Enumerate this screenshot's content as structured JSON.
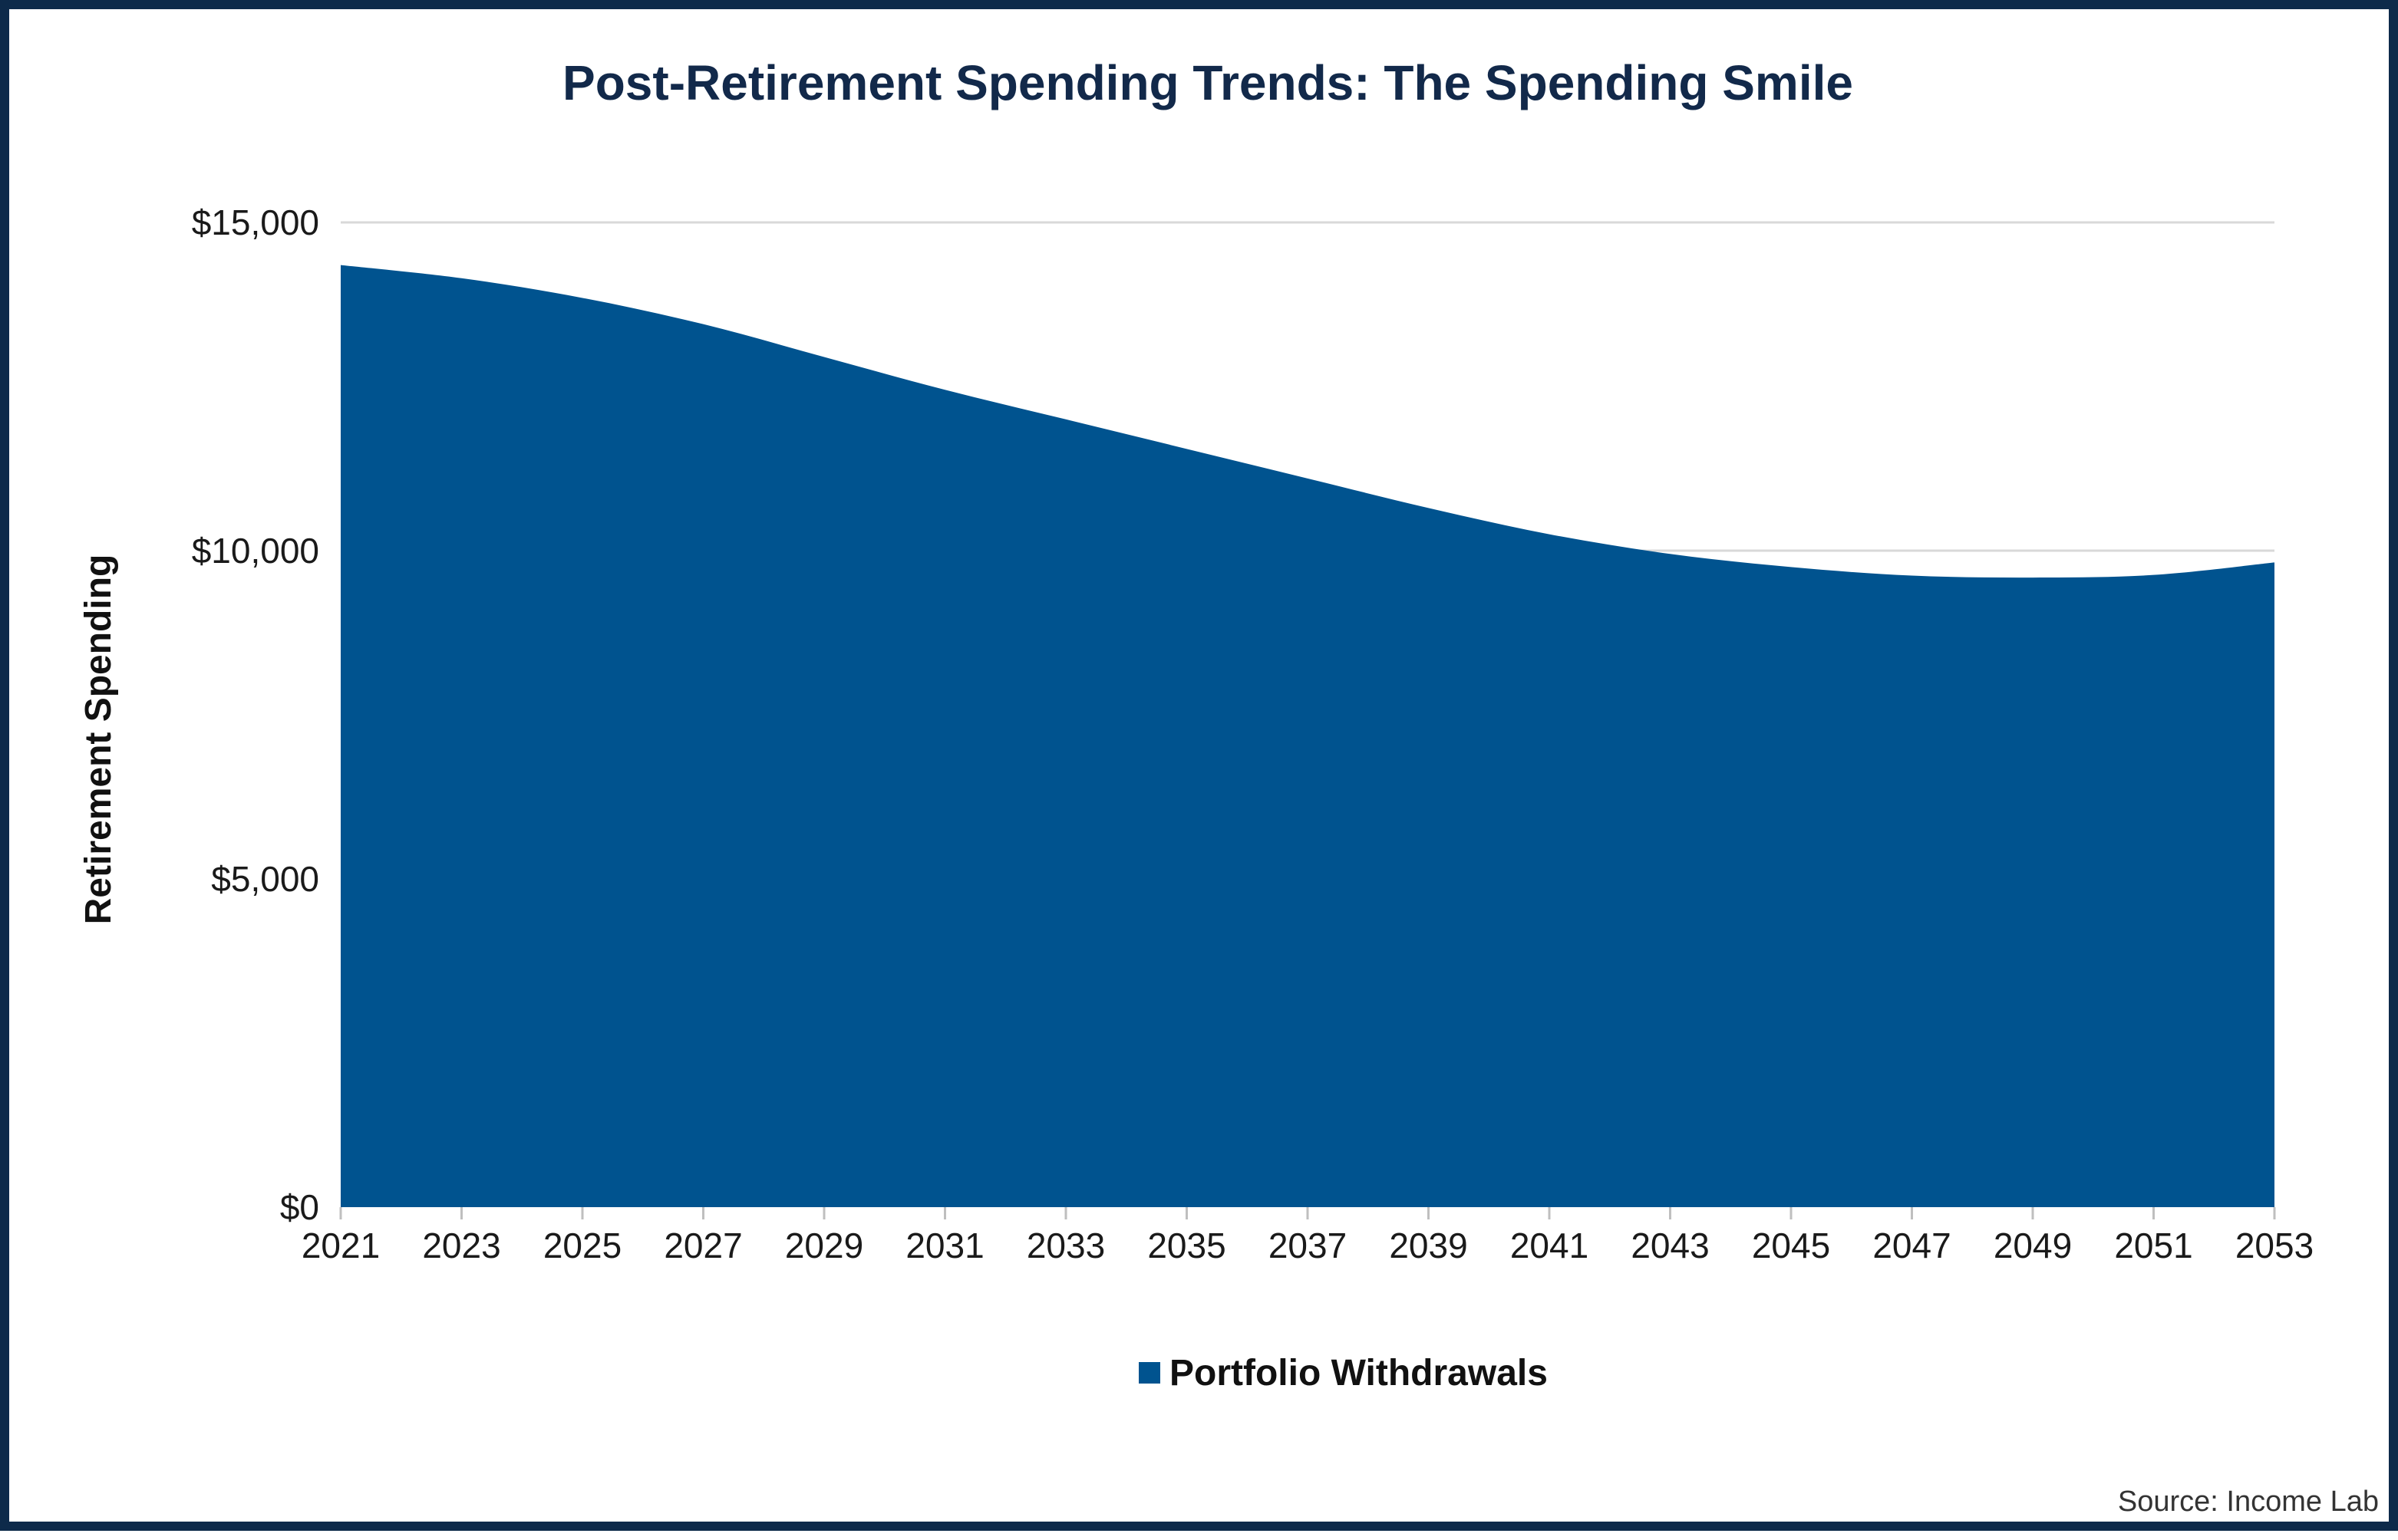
{
  "chart_data": {
    "type": "area",
    "title": "Post-Retirement Spending Trends: The Spending Smile",
    "xlabel": "",
    "ylabel": "Retirement Spending",
    "x": [
      2021,
      2023,
      2025,
      2027,
      2029,
      2031,
      2033,
      2035,
      2037,
      2039,
      2041,
      2043,
      2045,
      2047,
      2049,
      2051,
      2053
    ],
    "x_tick_labels": [
      "2021",
      "2023",
      "2025",
      "2027",
      "2029",
      "2031",
      "2033",
      "2035",
      "2037",
      "2039",
      "2041",
      "2043",
      "2045",
      "2047",
      "2049",
      "2051",
      "2053"
    ],
    "series": [
      {
        "name": "Portfolio Withdrawals",
        "color": "#00538f",
        "values": [
          14350,
          14150,
          13850,
          13450,
          12950,
          12450,
          12000,
          11550,
          11100,
          10650,
          10250,
          9950,
          9750,
          9620,
          9590,
          9630,
          9820
        ]
      }
    ],
    "ylim": [
      0,
      15000
    ],
    "y_ticks": [
      0,
      5000,
      10000,
      15000
    ],
    "y_tick_labels": [
      "$0",
      "$5,000",
      "$10,000",
      "$15,000"
    ],
    "grid": true,
    "legend_position": "bottom-center",
    "source": "Source: Income Lab"
  }
}
